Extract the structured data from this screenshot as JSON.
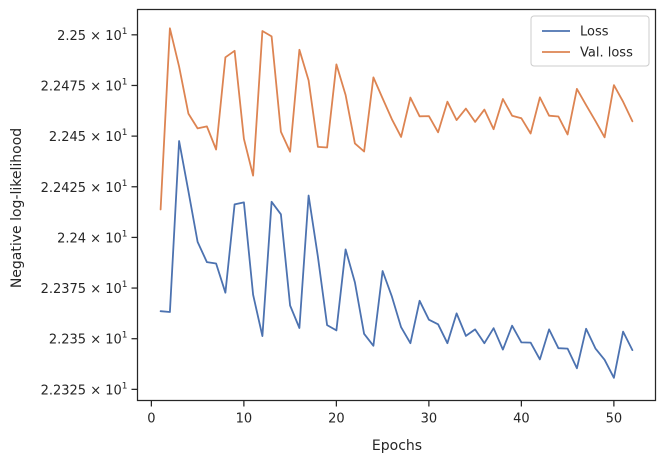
{
  "chart_data": {
    "type": "line",
    "title": "",
    "xlabel": "Epochs",
    "ylabel": "Negative log-likelihood",
    "xlim": [
      -1.5,
      54.5
    ],
    "ylim": [
      22.3195,
      22.5125
    ],
    "grid": false,
    "legend_position": "top-right",
    "x_ticks": [
      {
        "value": 0,
        "label": "0"
      },
      {
        "value": 10,
        "label": "10"
      },
      {
        "value": 20,
        "label": "20"
      },
      {
        "value": 30,
        "label": "30"
      },
      {
        "value": 40,
        "label": "40"
      },
      {
        "value": 50,
        "label": "50"
      }
    ],
    "y_ticks": [
      {
        "value": 22.325,
        "mantissa": "2.2325",
        "exponent": "1"
      },
      {
        "value": 22.35,
        "mantissa": "2.235",
        "exponent": "1"
      },
      {
        "value": 22.375,
        "mantissa": "2.2375",
        "exponent": "1"
      },
      {
        "value": 22.4,
        "mantissa": "2.24",
        "exponent": "1"
      },
      {
        "value": 22.425,
        "mantissa": "2.2425",
        "exponent": "1"
      },
      {
        "value": 22.45,
        "mantissa": "2.245",
        "exponent": "1"
      },
      {
        "value": 22.475,
        "mantissa": "2.2475",
        "exponent": "1"
      },
      {
        "value": 22.5,
        "mantissa": "2.25",
        "exponent": "1"
      }
    ],
    "x": [
      1,
      2,
      3,
      4,
      5,
      6,
      7,
      8,
      9,
      10,
      11,
      12,
      13,
      14,
      15,
      16,
      17,
      18,
      19,
      20,
      21,
      22,
      23,
      24,
      25,
      26,
      27,
      28,
      29,
      30,
      31,
      32,
      33,
      34,
      35,
      36,
      37,
      38,
      39,
      40,
      41,
      42,
      43,
      44,
      45,
      46,
      47,
      48,
      49,
      50,
      51,
      52
    ],
    "series": [
      {
        "name": "Loss",
        "color": "#4c72b0",
        "values": [
          22.3636,
          22.3632,
          22.4476,
          22.4228,
          22.3978,
          22.3878,
          22.3871,
          22.3727,
          22.4163,
          22.4173,
          22.3717,
          22.3513,
          22.4176,
          22.4114,
          22.3664,
          22.3553,
          22.4207,
          22.3905,
          22.3567,
          22.3541,
          22.3941,
          22.3778,
          22.3524,
          22.3465,
          22.3834,
          22.3708,
          22.3557,
          22.3478,
          22.3687,
          22.3594,
          22.3571,
          22.3478,
          22.3625,
          22.3514,
          22.3546,
          22.3478,
          22.3552,
          22.3446,
          22.3564,
          22.3482,
          22.3481,
          22.3398,
          22.3546,
          22.3453,
          22.3451,
          22.3354,
          22.3549,
          22.3452,
          22.3396,
          22.3307,
          22.3535,
          22.3444
        ]
      },
      {
        "name": "Val. loss",
        "color": "#dd8452",
        "values": [
          22.4138,
          22.5032,
          22.4843,
          22.4611,
          22.4538,
          22.4548,
          22.4434,
          22.4889,
          22.4921,
          22.4487,
          22.4305,
          22.5019,
          22.4992,
          22.4522,
          22.4423,
          22.4926,
          22.4775,
          22.4447,
          22.4444,
          22.4854,
          22.4703,
          22.4464,
          22.4424,
          22.479,
          22.4686,
          22.4583,
          22.4496,
          22.469,
          22.4598,
          22.4599,
          22.4519,
          22.467,
          22.4579,
          22.4636,
          22.457,
          22.4631,
          22.4534,
          22.4683,
          22.4601,
          22.4588,
          22.4513,
          22.4691,
          22.4601,
          22.4597,
          22.4508,
          22.4733,
          22.4653,
          22.4575,
          22.4494,
          22.4752,
          22.467,
          22.4573
        ]
      }
    ]
  }
}
